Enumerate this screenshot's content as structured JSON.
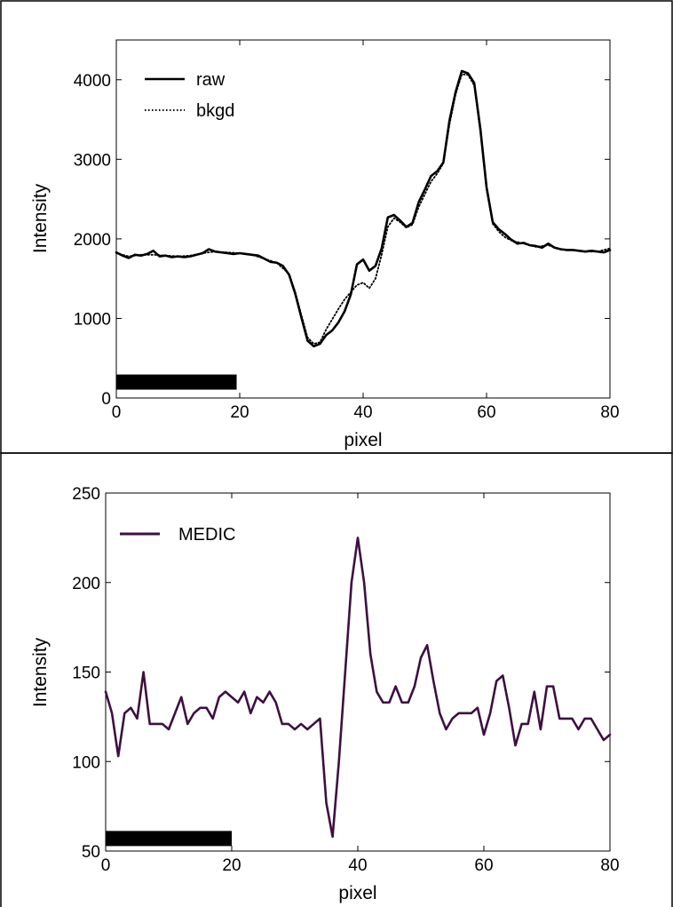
{
  "chart_data": [
    {
      "type": "line",
      "title": "",
      "xlabel": "pixel",
      "ylabel": "Intensity",
      "xlim": [
        0,
        80
      ],
      "ylim": [
        0,
        4500
      ],
      "xticks": [
        0,
        20,
        40,
        60,
        80
      ],
      "yticks": [
        0,
        1000,
        2000,
        3000,
        4000
      ],
      "grid": false,
      "legend_position": "top-left",
      "scale_bar": {
        "x_start": 0,
        "x_end": 19.5,
        "y_center": 200
      },
      "series": [
        {
          "name": "raw",
          "style": "solid",
          "color": "#000000",
          "points": [
            [
              0,
              1830
            ],
            [
              1,
              1790
            ],
            [
              2,
              1760
            ],
            [
              3,
              1800
            ],
            [
              4,
              1790
            ],
            [
              5,
              1810
            ],
            [
              6,
              1850
            ],
            [
              7,
              1780
            ],
            [
              8,
              1790
            ],
            [
              9,
              1770
            ],
            [
              10,
              1780
            ],
            [
              11,
              1770
            ],
            [
              12,
              1780
            ],
            [
              13,
              1800
            ],
            [
              14,
              1820
            ],
            [
              15,
              1870
            ],
            [
              16,
              1840
            ],
            [
              17,
              1830
            ],
            [
              18,
              1820
            ],
            [
              19,
              1810
            ],
            [
              20,
              1820
            ],
            [
              21,
              1810
            ],
            [
              22,
              1800
            ],
            [
              23,
              1790
            ],
            [
              24,
              1750
            ],
            [
              25,
              1710
            ],
            [
              26,
              1700
            ],
            [
              27,
              1660
            ],
            [
              28,
              1550
            ],
            [
              29,
              1310
            ],
            [
              30,
              1010
            ],
            [
              31,
              720
            ],
            [
              32,
              650
            ],
            [
              33,
              680
            ],
            [
              34,
              790
            ],
            [
              35,
              850
            ],
            [
              36,
              950
            ],
            [
              37,
              1090
            ],
            [
              38,
              1300
            ],
            [
              39,
              1680
            ],
            [
              40,
              1740
            ],
            [
              41,
              1600
            ],
            [
              42,
              1660
            ],
            [
              43,
              1880
            ],
            [
              44,
              2270
            ],
            [
              45,
              2300
            ],
            [
              46,
              2230
            ],
            [
              47,
              2150
            ],
            [
              48,
              2200
            ],
            [
              49,
              2460
            ],
            [
              50,
              2620
            ],
            [
              51,
              2790
            ],
            [
              52,
              2850
            ],
            [
              53,
              2960
            ],
            [
              54,
              3490
            ],
            [
              55,
              3850
            ],
            [
              56,
              4110
            ],
            [
              57,
              4080
            ],
            [
              58,
              3960
            ],
            [
              59,
              3380
            ],
            [
              60,
              2650
            ],
            [
              61,
              2210
            ],
            [
              62,
              2120
            ],
            [
              63,
              2060
            ],
            [
              64,
              1990
            ],
            [
              65,
              1940
            ],
            [
              66,
              1950
            ],
            [
              67,
              1920
            ],
            [
              68,
              1910
            ],
            [
              69,
              1890
            ],
            [
              70,
              1940
            ],
            [
              71,
              1890
            ],
            [
              72,
              1870
            ],
            [
              73,
              1860
            ],
            [
              74,
              1860
            ],
            [
              75,
              1850
            ],
            [
              76,
              1840
            ],
            [
              77,
              1850
            ],
            [
              78,
              1840
            ],
            [
              79,
              1830
            ],
            [
              80,
              1860
            ]
          ]
        },
        {
          "name": "bkgd",
          "style": "dotted",
          "color": "#000000",
          "points": [
            [
              0,
              1820
            ],
            [
              2,
              1780
            ],
            [
              4,
              1800
            ],
            [
              6,
              1800
            ],
            [
              8,
              1790
            ],
            [
              10,
              1780
            ],
            [
              12,
              1790
            ],
            [
              14,
              1820
            ],
            [
              16,
              1840
            ],
            [
              18,
              1830
            ],
            [
              20,
              1820
            ],
            [
              22,
              1800
            ],
            [
              24,
              1750
            ],
            [
              26,
              1700
            ],
            [
              28,
              1560
            ],
            [
              29,
              1330
            ],
            [
              30,
              1040
            ],
            [
              31,
              760
            ],
            [
              32,
              680
            ],
            [
              33,
              700
            ],
            [
              34,
              860
            ],
            [
              35,
              990
            ],
            [
              36,
              1120
            ],
            [
              37,
              1240
            ],
            [
              38,
              1330
            ],
            [
              39,
              1420
            ],
            [
              40,
              1450
            ],
            [
              41,
              1380
            ],
            [
              42,
              1500
            ],
            [
              43,
              1800
            ],
            [
              44,
              2150
            ],
            [
              45,
              2260
            ],
            [
              46,
              2210
            ],
            [
              47,
              2140
            ],
            [
              48,
              2180
            ],
            [
              49,
              2400
            ],
            [
              50,
              2560
            ],
            [
              51,
              2720
            ],
            [
              52,
              2820
            ],
            [
              53,
              2950
            ],
            [
              54,
              3440
            ],
            [
              55,
              3820
            ],
            [
              56,
              4070
            ],
            [
              57,
              4060
            ],
            [
              58,
              3930
            ],
            [
              59,
              3350
            ],
            [
              60,
              2620
            ],
            [
              61,
              2190
            ],
            [
              62,
              2090
            ],
            [
              63,
              2020
            ],
            [
              64,
              1980
            ],
            [
              66,
              1940
            ],
            [
              68,
              1900
            ],
            [
              70,
              1920
            ],
            [
              72,
              1870
            ],
            [
              74,
              1860
            ],
            [
              76,
              1840
            ],
            [
              78,
              1840
            ],
            [
              80,
              1880
            ]
          ]
        }
      ]
    },
    {
      "type": "line",
      "title": "",
      "xlabel": "pixel",
      "ylabel": "Intensity",
      "xlim": [
        0,
        80
      ],
      "ylim": [
        50,
        250
      ],
      "xticks": [
        0,
        20,
        40,
        60,
        80
      ],
      "yticks": [
        50,
        100,
        150,
        200,
        250
      ],
      "grid": false,
      "legend_position": "top-left",
      "scale_bar": {
        "x_start": 0,
        "x_end": 20,
        "y_center": 57
      },
      "series": [
        {
          "name": "MEDIC",
          "style": "solid",
          "color": "#3d1040",
          "points": [
            [
              0,
              139
            ],
            [
              1,
              127
            ],
            [
              2,
              103
            ],
            [
              3,
              127
            ],
            [
              4,
              130
            ],
            [
              5,
              124
            ],
            [
              6,
              150
            ],
            [
              7,
              121
            ],
            [
              8,
              121
            ],
            [
              9,
              121
            ],
            [
              10,
              118
            ],
            [
              11,
              127
            ],
            [
              12,
              136
            ],
            [
              13,
              121
            ],
            [
              14,
              127
            ],
            [
              15,
              130
            ],
            [
              16,
              130
            ],
            [
              17,
              124
            ],
            [
              18,
              136
            ],
            [
              19,
              139
            ],
            [
              20,
              136
            ],
            [
              21,
              133
            ],
            [
              22,
              139
            ],
            [
              23,
              127
            ],
            [
              24,
              136
            ],
            [
              25,
              133
            ],
            [
              26,
              139
            ],
            [
              27,
              133
            ],
            [
              28,
              121
            ],
            [
              29,
              121
            ],
            [
              30,
              118
            ],
            [
              31,
              121
            ],
            [
              32,
              118
            ],
            [
              33,
              121
            ],
            [
              34,
              124
            ],
            [
              35,
              77
            ],
            [
              36,
              58
            ],
            [
              37,
              100
            ],
            [
              38,
              150
            ],
            [
              39,
              200
            ],
            [
              40,
              225
            ],
            [
              41,
              200
            ],
            [
              42,
              160
            ],
            [
              43,
              139
            ],
            [
              44,
              133
            ],
            [
              45,
              133
            ],
            [
              46,
              142
            ],
            [
              47,
              133
            ],
            [
              48,
              133
            ],
            [
              49,
              142
            ],
            [
              50,
              158
            ],
            [
              51,
              165
            ],
            [
              52,
              145
            ],
            [
              53,
              127
            ],
            [
              54,
              118
            ],
            [
              55,
              124
            ],
            [
              56,
              127
            ],
            [
              57,
              127
            ],
            [
              58,
              127
            ],
            [
              59,
              130
            ],
            [
              60,
              115
            ],
            [
              61,
              127
            ],
            [
              62,
              145
            ],
            [
              63,
              148
            ],
            [
              64,
              130
            ],
            [
              65,
              109
            ],
            [
              66,
              121
            ],
            [
              67,
              121
            ],
            [
              68,
              139
            ],
            [
              69,
              118
            ],
            [
              70,
              142
            ],
            [
              71,
              142
            ],
            [
              72,
              124
            ],
            [
              73,
              124
            ],
            [
              74,
              124
            ],
            [
              75,
              118
            ],
            [
              76,
              124
            ],
            [
              77,
              124
            ],
            [
              78,
              118
            ],
            [
              79,
              112
            ],
            [
              80,
              115
            ]
          ]
        }
      ]
    }
  ]
}
